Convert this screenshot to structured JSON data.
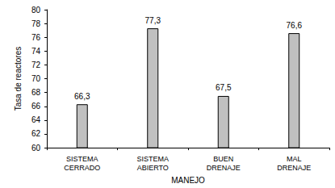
{
  "chart_data": {
    "type": "bar",
    "categories": [
      "SISTEMA CERRADO",
      "SISTEMA ABIERTO",
      "BUEN DRENAJE",
      "MAL DRENAJE"
    ],
    "values": [
      66.3,
      77.3,
      67.5,
      76.6
    ],
    "value_labels": [
      "66,3",
      "77,3",
      "67,5",
      "76,6"
    ],
    "data_labels": true,
    "color": "#c0c0c0",
    "x_label": "MANEJO",
    "y_label": "Tasa de reactores",
    "ylim": [
      60,
      80
    ],
    "yticks": [
      60,
      62,
      64,
      66,
      68,
      70,
      72,
      74,
      76,
      78,
      80
    ],
    "grid": false
  }
}
